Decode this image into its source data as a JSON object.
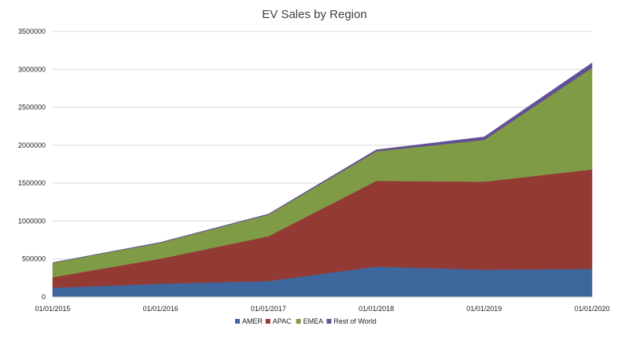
{
  "chart_data": {
    "type": "area",
    "stacked": true,
    "title": "EV Sales by Region",
    "xlabel": "",
    "ylabel": "",
    "x": [
      "01/01/2015",
      "01/01/2016",
      "01/01/2017",
      "01/01/2018",
      "01/01/2019",
      "01/01/2020"
    ],
    "ylim": [
      0,
      3500000
    ],
    "yticks": [
      "0",
      "500000",
      "1000000",
      "1500000",
      "2000000",
      "2500000",
      "3000000",
      "3500000"
    ],
    "grid": true,
    "legend_position": "bottom",
    "series": [
      {
        "name": "AMER",
        "color": "#3d679d",
        "values": [
          120000,
          175000,
          210000,
          400000,
          360000,
          370000
        ]
      },
      {
        "name": "APAC",
        "color": "#943a35",
        "values": [
          140000,
          330000,
          590000,
          1130000,
          1160000,
          1310000
        ]
      },
      {
        "name": "EMEA",
        "color": "#7f9b45",
        "values": [
          190000,
          210000,
          285000,
          390000,
          550000,
          1340000
        ]
      },
      {
        "name": "Rest of World",
        "color": "#634f96",
        "values": [
          3000,
          6000,
          8000,
          20000,
          40000,
          65000
        ]
      }
    ]
  }
}
